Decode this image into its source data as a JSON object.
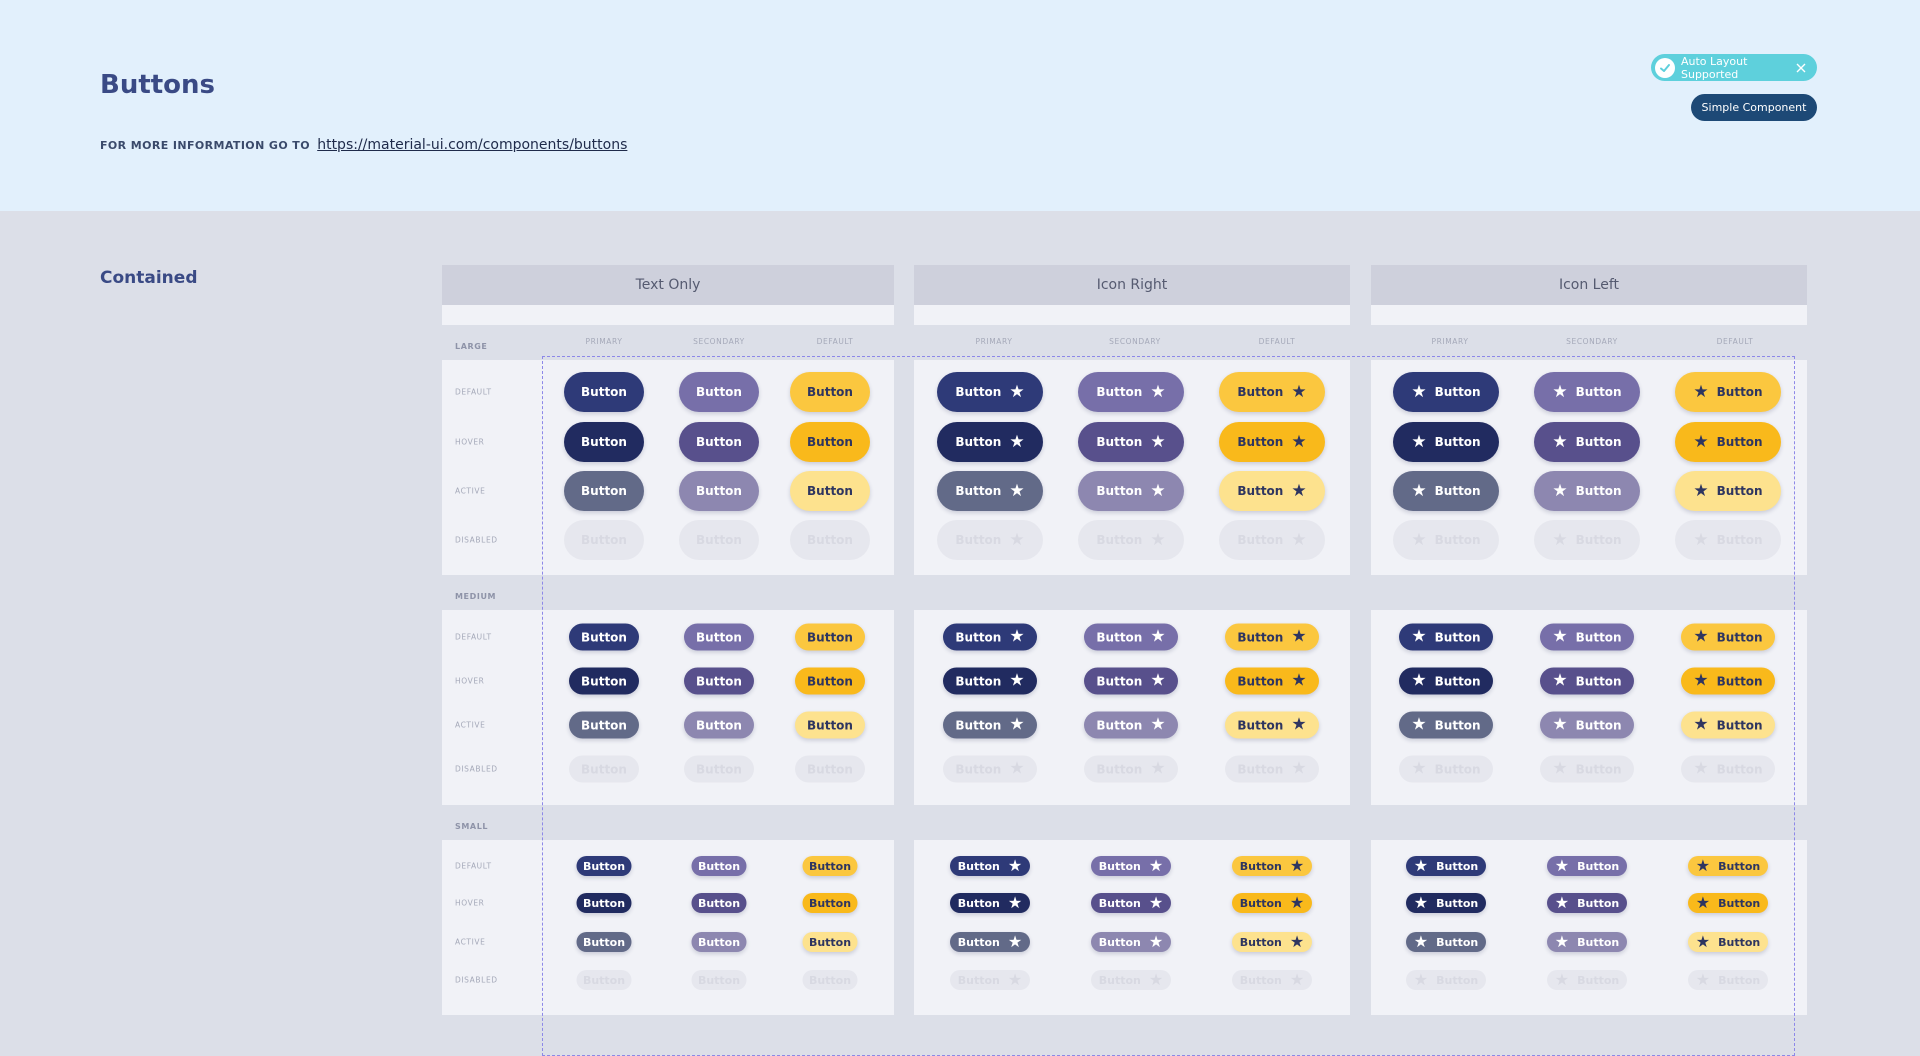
{
  "header": {
    "title": "Buttons",
    "info_prefix": "FOR MORE INFORMATION GO TO",
    "info_link": "https://material-ui.com/components/buttons",
    "badge_auto_layout": "Auto Layout Supported",
    "badge_simple": "Simple Component"
  },
  "section": {
    "title": "Contained"
  },
  "groups": [
    "Text Only",
    "Icon Right",
    "Icon Left"
  ],
  "columns": [
    "PRIMARY",
    "SECONDARY",
    "DEFAULT"
  ],
  "sizes": [
    "LARGE",
    "MEDIUM",
    "SMALL"
  ],
  "states": [
    "DEFAULT",
    "HOVER",
    "ACTIVE",
    "DISABLED"
  ],
  "button_label": "Button",
  "icons": {
    "check": "check-icon",
    "close": "close-icon",
    "star": "star-icon"
  },
  "colors": {
    "primary": [
      "#2e3a78",
      "#212b60",
      "#626a88",
      "#e6e7ee"
    ],
    "secondary": [
      "#776fa9",
      "#58508c",
      "#8d87b0",
      "#e6e7ee"
    ],
    "default": [
      "#fbc73f",
      "#f9b91b",
      "#fde28e",
      "#e6e7ee"
    ],
    "accent_badge": "#5ed0dc",
    "badge_dark": "#1d4976",
    "title": "#3a4a85"
  }
}
